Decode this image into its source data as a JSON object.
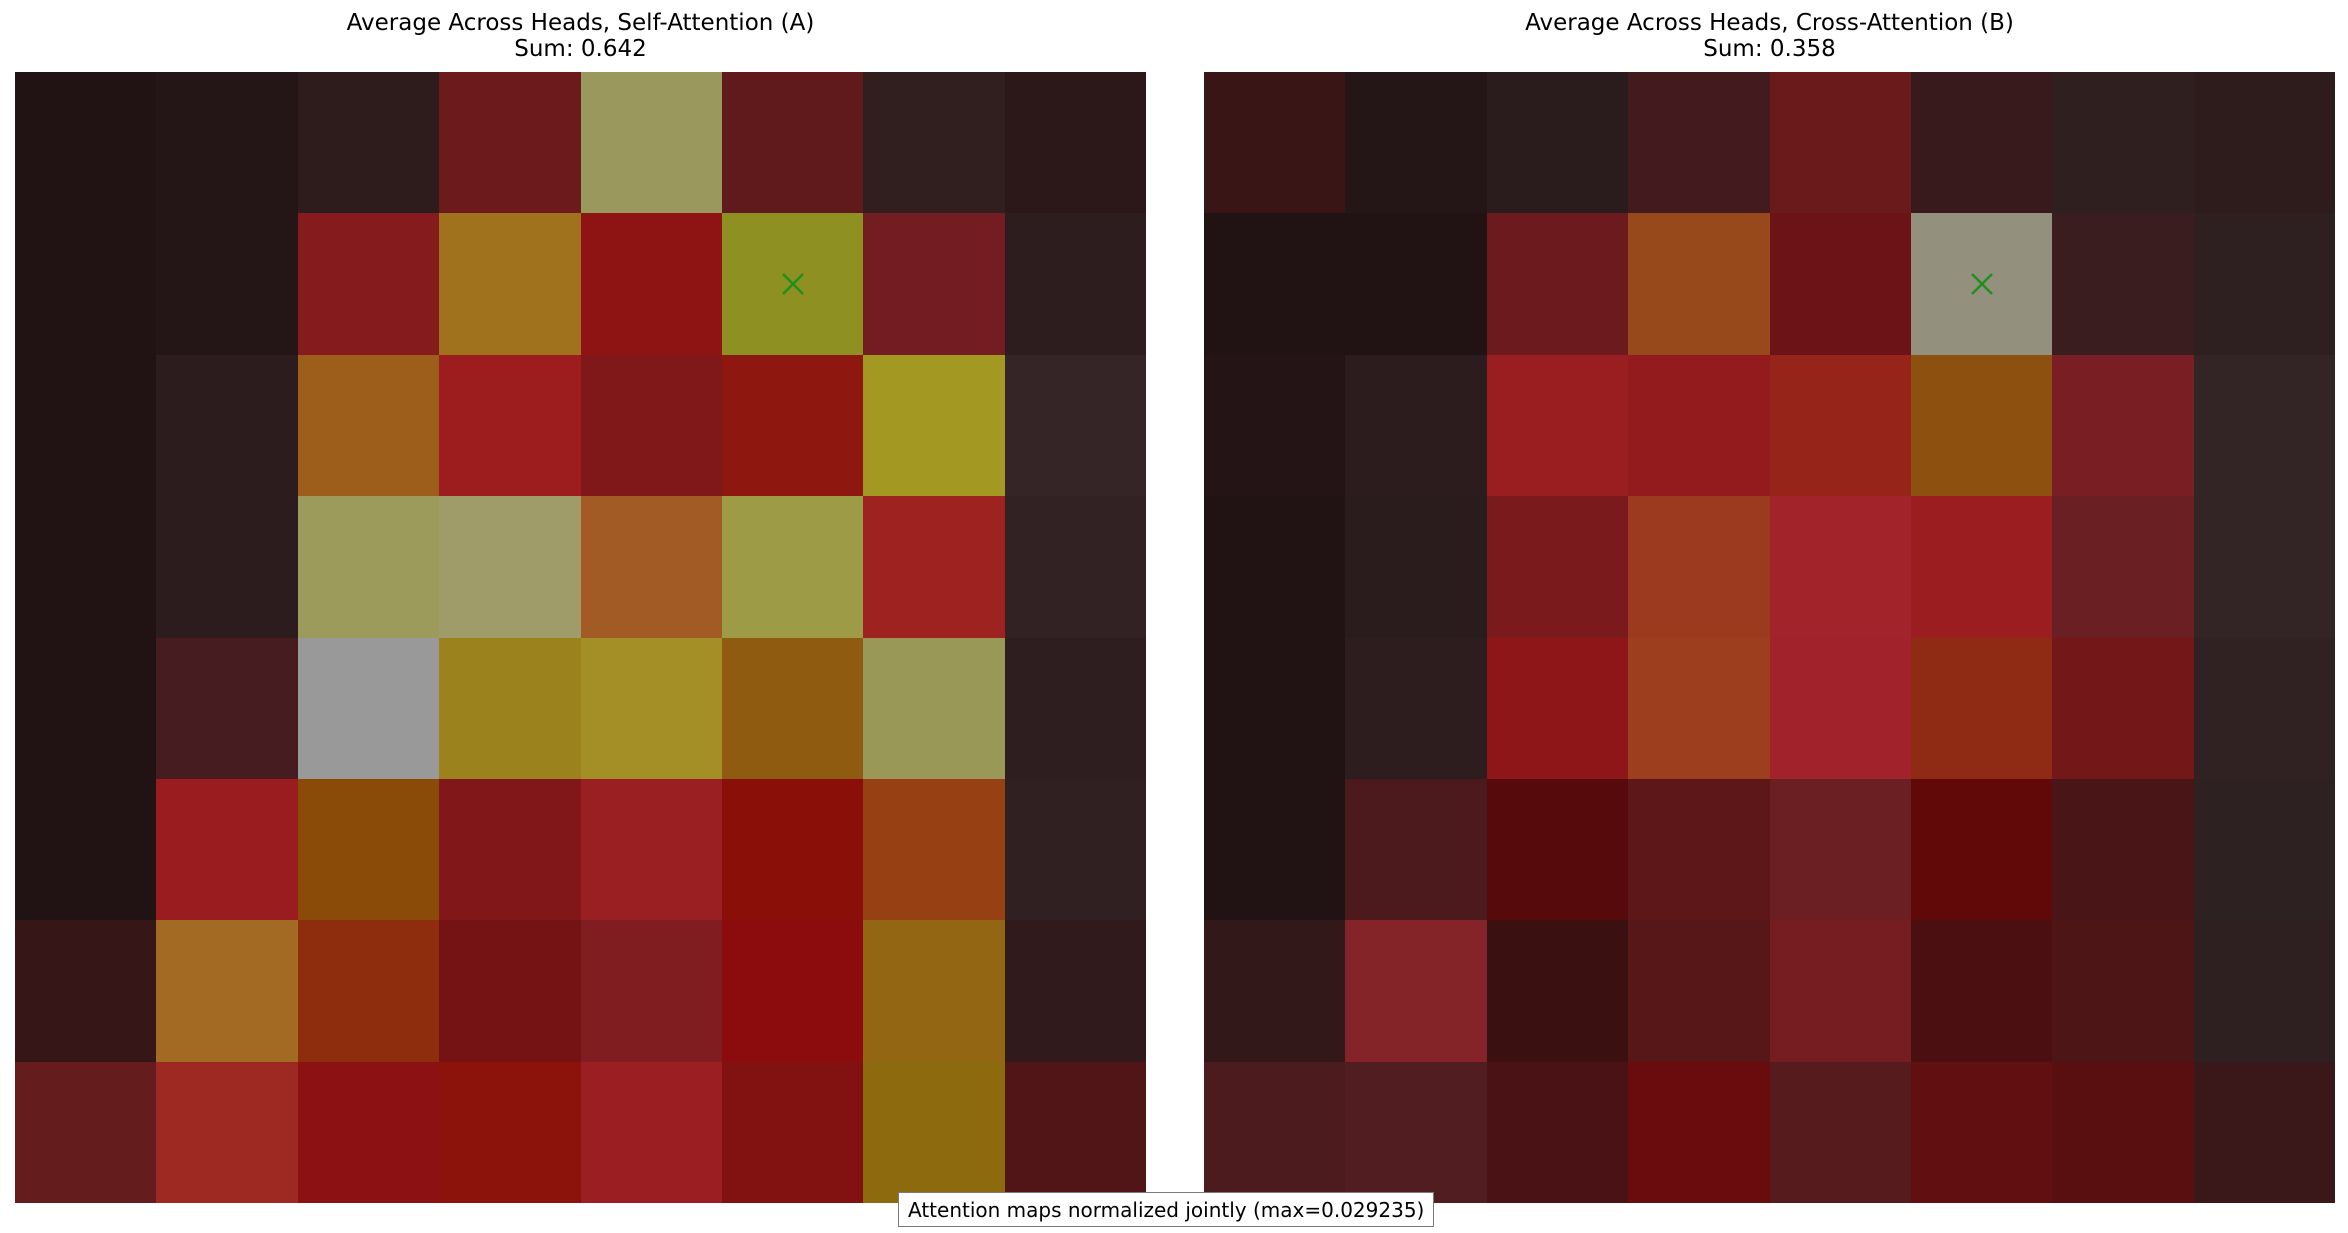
{
  "footer_note": "Attention maps normalized jointly (max=0.029235)",
  "chart_data": [
    {
      "type": "heatmap",
      "title": "Average Across Heads, Self-Attention (A)",
      "subtitle": "Sum: 0.642",
      "grid_size": [
        8,
        8
      ],
      "marker": {
        "row": 1,
        "col": 5,
        "symbol": "x",
        "color": "#1f8f1f"
      },
      "cell_colors": [
        [
          "#211314",
          "#241617",
          "#2e1c1c",
          "#6c1a1c",
          "#9a985c",
          "#611a1b",
          "#311e1f",
          "#2c1819"
        ],
        [
          "#211314",
          "#241617",
          "#851b1c",
          "#a0721e",
          "#8e1414",
          "#8e9022",
          "#731c21",
          "#2e1d1e"
        ],
        [
          "#211314",
          "#2c1c1d",
          "#9d5e1c",
          "#9d1d1e",
          "#801819",
          "#8e180f",
          "#a39822",
          "#352526"
        ],
        [
          "#211314",
          "#2c1c1d",
          "#9c9b5c",
          "#9f9c6a",
          "#a35b25",
          "#9d9b45",
          "#9e2220",
          "#332223"
        ],
        [
          "#211314",
          "#471c21",
          "#999999",
          "#9c821c",
          "#a48f26",
          "#8f5b11",
          "#999857",
          "#2e1e1f"
        ],
        [
          "#211314",
          "#9b1c1e",
          "#894b07",
          "#821719",
          "#9a1f23",
          "#8a0f08",
          "#964014",
          "#302021"
        ],
        [
          "#371618",
          "#a36a23",
          "#8e2d0e",
          "#751314",
          "#801d20",
          "#8c0c0e",
          "#926612",
          "#311a1b"
        ],
        [
          "#641c1d",
          "#9e2822",
          "#8c1113",
          "#8b130b",
          "#9b1e22",
          "#821112",
          "#8d6a0d",
          "#511517"
        ]
      ]
    },
    {
      "type": "heatmap",
      "title": "Average Across Heads, Cross-Attention (B)",
      "subtitle": "Sum: 0.358",
      "grid_size": [
        8,
        8
      ],
      "marker": {
        "row": 1,
        "col": 5,
        "symbol": "x",
        "color": "#1f8f1f"
      },
      "cell_colors": [
        [
          "#3a1516",
          "#241617",
          "#2a1c1d",
          "#431a1d",
          "#6b1a1c",
          "#381a1c",
          "#2f1f1f",
          "#2e1b1c"
        ],
        [
          "#211314",
          "#211314",
          "#6c1a1d",
          "#98491c",
          "#6b1316",
          "#93917e",
          "#3a1d1f",
          "#2e1f20"
        ],
        [
          "#241415",
          "#2c1c1d",
          "#9a1d20",
          "#931b1e",
          "#962419",
          "#8e500e",
          "#791e22",
          "#332526"
        ],
        [
          "#211314",
          "#2a1b1c",
          "#7a1a1d",
          "#9b3a1f",
          "#a2232a",
          "#9b1d1f",
          "#6a1f23",
          "#332425"
        ],
        [
          "#211314",
          "#2e1d1e",
          "#8e1518",
          "#9d3e1f",
          "#a1222a",
          "#8f2b14",
          "#731719",
          "#302223"
        ],
        [
          "#211314",
          "#4c191c",
          "#560a0b",
          "#5e1719",
          "#6c1f23",
          "#610909",
          "#4a1517",
          "#2e2122"
        ],
        [
          "#331819",
          "#852428",
          "#3a1011",
          "#571719",
          "#751d21",
          "#4b0f11",
          "#4d1516",
          "#2e1f20"
        ],
        [
          "#4b1b1d",
          "#521d20",
          "#4a1214",
          "#6a0c0e",
          "#561b1d",
          "#620f12",
          "#590e0f",
          "#3a1719"
        ]
      ]
    }
  ]
}
